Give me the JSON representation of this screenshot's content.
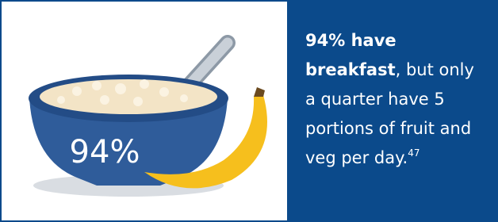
{
  "illustration": {
    "label": "94%"
  },
  "panel": {
    "bold": "94% have breakfast",
    "text": ", but only a quarter have 5 portions of fruit and veg per day.",
    "note": "47"
  }
}
